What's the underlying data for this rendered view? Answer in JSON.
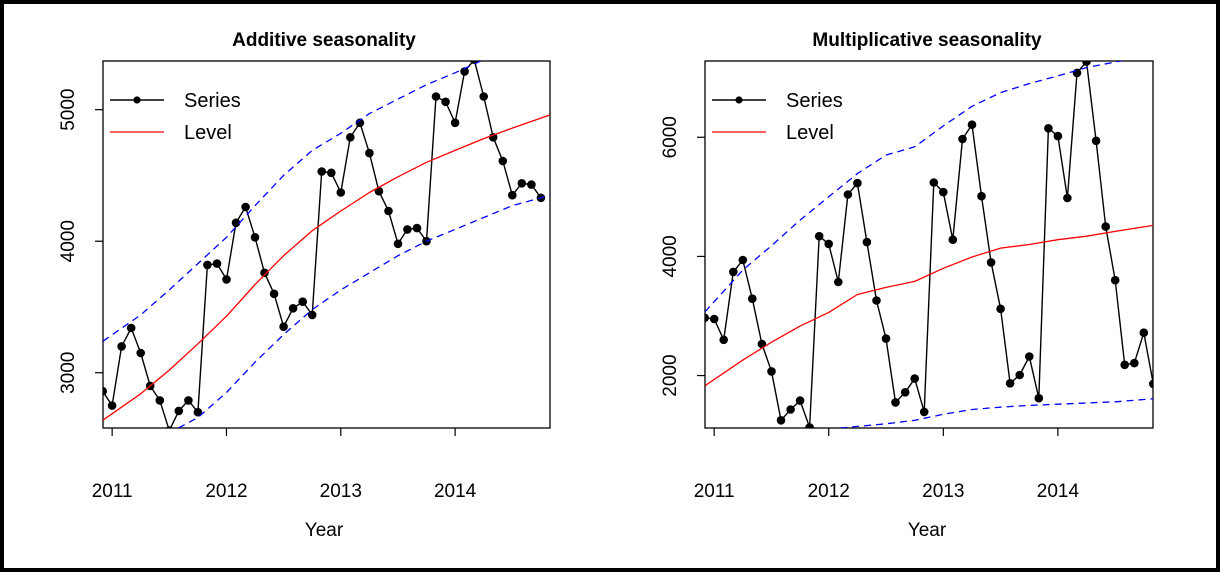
{
  "chart_data": [
    {
      "type": "line",
      "title": "Additive seasonality",
      "xlabel": "Year",
      "ylabel": "",
      "xlim": [
        2010.92,
        2014.83
      ],
      "ylim": [
        2580,
        5370
      ],
      "x_ticks": [
        2011,
        2012,
        2013,
        2014
      ],
      "x_tick_labels": [
        "2011",
        "2012",
        "2013",
        "2014"
      ],
      "y_ticks": [
        3000,
        4000,
        5000
      ],
      "y_tick_labels": [
        "3000",
        "4000",
        "5000"
      ],
      "grid": false,
      "legend": {
        "placement": "top-left",
        "entries": [
          "Series",
          "Level"
        ]
      },
      "series": [
        {
          "name": "Series",
          "color": "#000000",
          "style": "line-points",
          "points": [
            [
              2010.917,
              2860
            ],
            [
              2011.0,
              2750
            ],
            [
              2011.083,
              3200
            ],
            [
              2011.167,
              3340
            ],
            [
              2011.25,
              3150
            ],
            [
              2011.333,
              2900
            ],
            [
              2011.417,
              2790
            ],
            [
              2011.5,
              2560
            ],
            [
              2011.583,
              2710
            ],
            [
              2011.667,
              2790
            ],
            [
              2011.75,
              2700
            ],
            [
              2011.833,
              3820
            ],
            [
              2011.917,
              3830
            ],
            [
              2012.0,
              3710
            ],
            [
              2012.083,
              4140
            ],
            [
              2012.167,
              4260
            ],
            [
              2012.25,
              4030
            ],
            [
              2012.333,
              3760
            ],
            [
              2012.417,
              3600
            ],
            [
              2012.5,
              3350
            ],
            [
              2012.583,
              3490
            ],
            [
              2012.667,
              3540
            ],
            [
              2012.75,
              3440
            ],
            [
              2012.833,
              4530
            ],
            [
              2012.917,
              4520
            ],
            [
              2013.0,
              4370
            ],
            [
              2013.083,
              4790
            ],
            [
              2013.167,
              4900
            ],
            [
              2013.25,
              4670
            ],
            [
              2013.333,
              4380
            ],
            [
              2013.417,
              4230
            ],
            [
              2013.5,
              3980
            ],
            [
              2013.583,
              4090
            ],
            [
              2013.667,
              4100
            ],
            [
              2013.75,
              4000
            ],
            [
              2013.833,
              5100
            ],
            [
              2013.917,
              5060
            ],
            [
              2014.0,
              4900
            ],
            [
              2014.083,
              5290
            ],
            [
              2014.167,
              5380
            ],
            [
              2014.25,
              5100
            ],
            [
              2014.333,
              4790
            ],
            [
              2014.417,
              4610
            ],
            [
              2014.5,
              4350
            ],
            [
              2014.583,
              4440
            ],
            [
              2014.667,
              4430
            ],
            [
              2014.75,
              4330
            ]
          ]
        },
        {
          "name": "Level",
          "color": "#ff0000",
          "style": "line",
          "points": [
            [
              2010.92,
              2640
            ],
            [
              2011.25,
              2840
            ],
            [
              2011.5,
              3020
            ],
            [
              2011.75,
              3220
            ],
            [
              2012.0,
              3430
            ],
            [
              2012.25,
              3670
            ],
            [
              2012.5,
              3890
            ],
            [
              2012.75,
              4080
            ],
            [
              2013.0,
              4230
            ],
            [
              2013.25,
              4370
            ],
            [
              2013.5,
              4490
            ],
            [
              2013.75,
              4600
            ],
            [
              2014.0,
              4690
            ],
            [
              2014.25,
              4780
            ],
            [
              2014.5,
              4860
            ],
            [
              2014.83,
              4960
            ]
          ]
        },
        {
          "color": "#0000ff",
          "style": "dashed",
          "points": [
            [
              2010.92,
              3240
            ],
            [
              2011.25,
              3440
            ],
            [
              2011.5,
              3630
            ],
            [
              2011.75,
              3830
            ],
            [
              2012.0,
              4030
            ],
            [
              2012.25,
              4270
            ],
            [
              2012.5,
              4500
            ],
            [
              2012.75,
              4690
            ],
            [
              2013.0,
              4820
            ],
            [
              2013.25,
              4970
            ],
            [
              2013.5,
              5080
            ],
            [
              2013.75,
              5190
            ],
            [
              2014.0,
              5280
            ],
            [
              2014.25,
              5380
            ]
          ]
        },
        {
          "color": "#0000ff",
          "style": "dashed",
          "points": [
            [
              2011.58,
              2580
            ],
            [
              2011.75,
              2660
            ],
            [
              2012.0,
              2850
            ],
            [
              2012.25,
              3080
            ],
            [
              2012.5,
              3290
            ],
            [
              2012.75,
              3480
            ],
            [
              2013.0,
              3630
            ],
            [
              2013.25,
              3760
            ],
            [
              2013.5,
              3890
            ],
            [
              2013.75,
              4000
            ],
            [
              2014.0,
              4090
            ],
            [
              2014.25,
              4180
            ],
            [
              2014.5,
              4270
            ],
            [
              2014.83,
              4350
            ]
          ]
        }
      ]
    },
    {
      "type": "line",
      "title": "Multiplicative seasonality",
      "xlabel": "Year",
      "ylabel": "",
      "xlim": [
        2010.92,
        2014.83
      ],
      "ylim": [
        1120,
        7280
      ],
      "x_ticks": [
        2011,
        2012,
        2013,
        2014
      ],
      "x_tick_labels": [
        "2011",
        "2012",
        "2013",
        "2014"
      ],
      "y_ticks": [
        2000,
        4000,
        6000
      ],
      "y_tick_labels": [
        "2000",
        "4000",
        "6000"
      ],
      "grid": false,
      "legend": {
        "placement": "top-left",
        "entries": [
          "Series",
          "Level"
        ]
      },
      "series": [
        {
          "name": "Series",
          "color": "#000000",
          "style": "line-points",
          "points": [
            [
              2010.917,
              2970
            ],
            [
              2011.0,
              2950
            ],
            [
              2011.083,
              2600
            ],
            [
              2011.167,
              3740
            ],
            [
              2011.25,
              3940
            ],
            [
              2011.333,
              3290
            ],
            [
              2011.417,
              2530
            ],
            [
              2011.5,
              2070
            ],
            [
              2011.583,
              1250
            ],
            [
              2011.667,
              1430
            ],
            [
              2011.75,
              1580
            ],
            [
              2011.833,
              1130
            ],
            [
              2011.917,
              4340
            ],
            [
              2012.0,
              4210
            ],
            [
              2012.083,
              3570
            ],
            [
              2012.167,
              5040
            ],
            [
              2012.25,
              5230
            ],
            [
              2012.333,
              4240
            ],
            [
              2012.417,
              3260
            ],
            [
              2012.5,
              2620
            ],
            [
              2012.583,
              1550
            ],
            [
              2012.667,
              1720
            ],
            [
              2012.75,
              1950
            ],
            [
              2012.833,
              1390
            ],
            [
              2012.917,
              5240
            ],
            [
              2013.0,
              5080
            ],
            [
              2013.083,
              4280
            ],
            [
              2013.167,
              5970
            ],
            [
              2013.25,
              6210
            ],
            [
              2013.333,
              5010
            ],
            [
              2013.417,
              3900
            ],
            [
              2013.5,
              3120
            ],
            [
              2013.583,
              1870
            ],
            [
              2013.667,
              2010
            ],
            [
              2013.75,
              2320
            ],
            [
              2013.833,
              1620
            ],
            [
              2013.917,
              6150
            ],
            [
              2014.0,
              6020
            ],
            [
              2014.083,
              4980
            ],
            [
              2014.167,
              7080
            ],
            [
              2014.25,
              7270
            ],
            [
              2014.333,
              5940
            ],
            [
              2014.417,
              4500
            ],
            [
              2014.5,
              3600
            ],
            [
              2014.583,
              2180
            ],
            [
              2014.667,
              2210
            ],
            [
              2014.75,
              2720
            ],
            [
              2014.833,
              1860
            ]
          ]
        },
        {
          "name": "Level",
          "color": "#ff0000",
          "style": "line",
          "points": [
            [
              2010.92,
              1830
            ],
            [
              2011.25,
              2260
            ],
            [
              2011.5,
              2560
            ],
            [
              2011.75,
              2830
            ],
            [
              2012.0,
              3060
            ],
            [
              2012.25,
              3360
            ],
            [
              2012.5,
              3480
            ],
            [
              2012.75,
              3580
            ],
            [
              2013.0,
              3800
            ],
            [
              2013.25,
              3990
            ],
            [
              2013.5,
              4140
            ],
            [
              2013.75,
              4200
            ],
            [
              2014.0,
              4280
            ],
            [
              2014.25,
              4340
            ],
            [
              2014.5,
              4420
            ],
            [
              2014.83,
              4520
            ]
          ]
        },
        {
          "color": "#0000ff",
          "style": "dashed",
          "points": [
            [
              2010.92,
              3070
            ],
            [
              2011.25,
              3770
            ],
            [
              2011.5,
              4180
            ],
            [
              2011.75,
              4610
            ],
            [
              2012.0,
              5000
            ],
            [
              2012.25,
              5390
            ],
            [
              2012.5,
              5700
            ],
            [
              2012.75,
              5840
            ],
            [
              2013.0,
              6190
            ],
            [
              2013.25,
              6520
            ],
            [
              2013.5,
              6750
            ],
            [
              2013.75,
              6900
            ],
            [
              2014.0,
              7030
            ],
            [
              2014.25,
              7170
            ],
            [
              2014.6,
              7300
            ]
          ]
        },
        {
          "color": "#0000ff",
          "style": "dashed",
          "points": [
            [
              2012.1,
              1120
            ],
            [
              2012.5,
              1190
            ],
            [
              2012.75,
              1250
            ],
            [
              2013.0,
              1350
            ],
            [
              2013.25,
              1430
            ],
            [
              2013.5,
              1470
            ],
            [
              2013.75,
              1500
            ],
            [
              2014.0,
              1520
            ],
            [
              2014.25,
              1540
            ],
            [
              2014.5,
              1560
            ],
            [
              2014.83,
              1610
            ]
          ]
        }
      ]
    }
  ]
}
